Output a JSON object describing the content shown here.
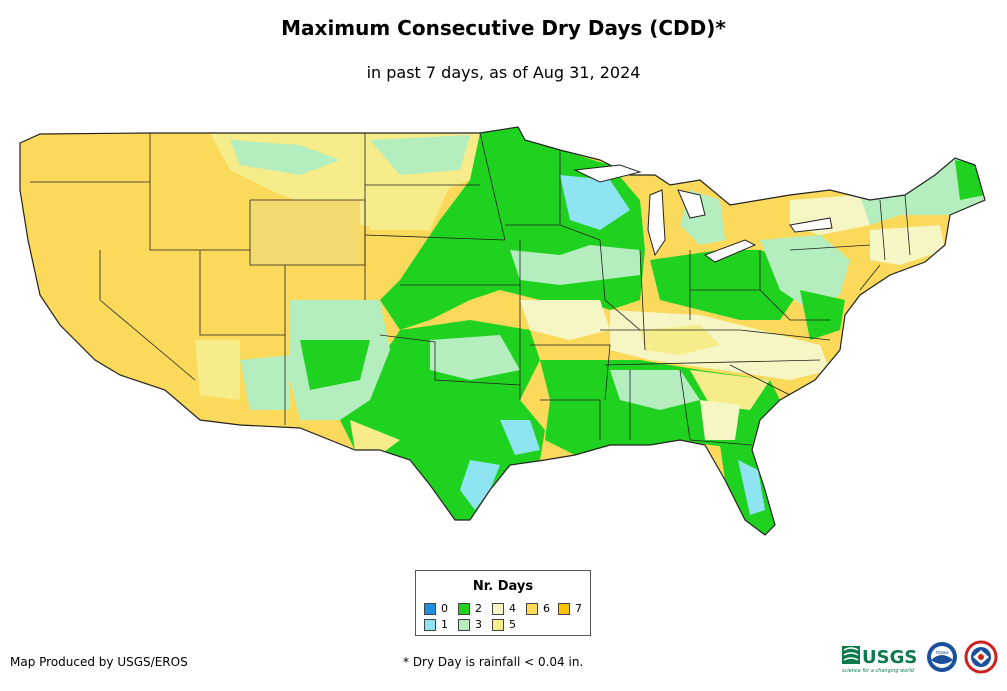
{
  "title": "Maximum Consecutive Dry Days (CDD)*",
  "subtitle": "in past 7 days, as of Aug 31, 2024",
  "legend": {
    "title": "Nr. Days",
    "items": [
      {
        "label": "0",
        "color": "#1f8fe0"
      },
      {
        "label": "1",
        "color": "#8fe4f2"
      },
      {
        "label": "2",
        "color": "#1fd21f"
      },
      {
        "label": "3",
        "color": "#b4edbe"
      },
      {
        "label": "4",
        "color": "#f6f6c4"
      },
      {
        "label": "5",
        "color": "#f6ec8a"
      },
      {
        "label": "6",
        "color": "#fbd95b"
      },
      {
        "label": "7",
        "color": "#f7c200"
      }
    ]
  },
  "footer": {
    "producer": "Map Produced by USGS/EROS",
    "note": "* Dry Day is rainfall < 0.04 in."
  },
  "logos": {
    "usgs": "USGS",
    "usgs_tagline": "science for a changing world",
    "noaa": "noaa"
  },
  "map_colors": {
    "outline": "#222222",
    "base": "#fbd95b"
  }
}
